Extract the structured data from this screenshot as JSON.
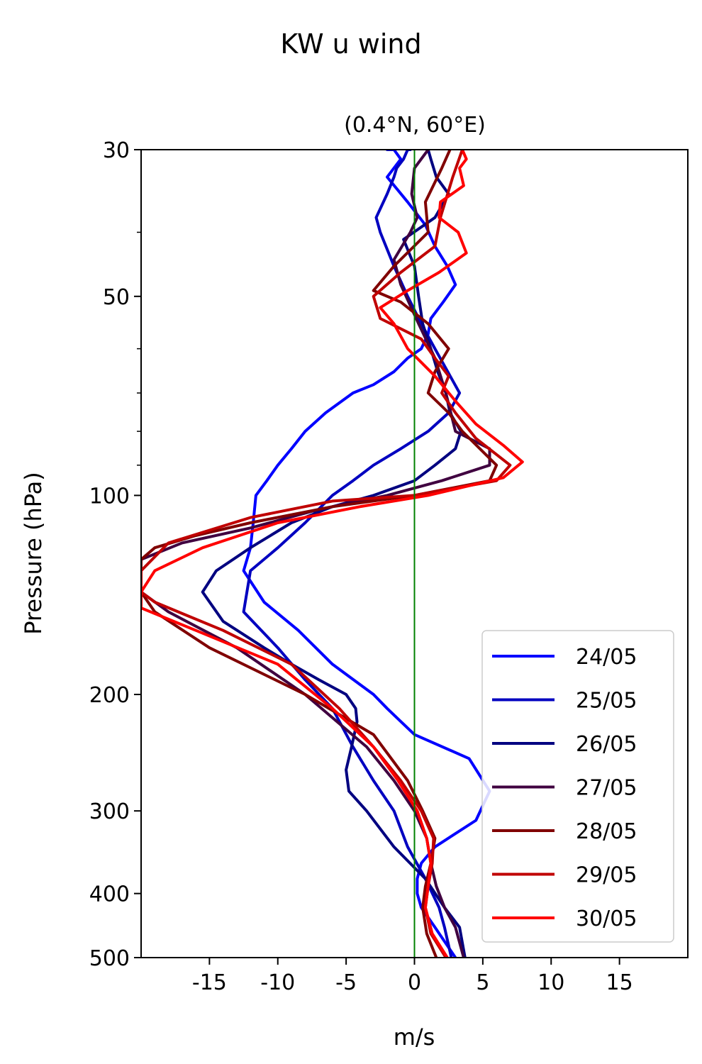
{
  "chart_data": {
    "type": "line",
    "title": "KW u wind",
    "subtitle": "(0.4°N, 60°E)",
    "xlabel": "m/s",
    "ylabel": "Pressure (hPa)",
    "xlim": [
      -20,
      20
    ],
    "ylim": [
      500,
      30
    ],
    "y_scale": "log",
    "x_ticks": [
      -15,
      -10,
      -5,
      0,
      5,
      10,
      15
    ],
    "x_tick_labels": [
      "-15",
      "-10",
      "-5",
      "0",
      "5",
      "10",
      "15"
    ],
    "y_ticks": [
      30,
      50,
      100,
      200,
      300,
      400,
      500
    ],
    "y_tick_labels": [
      "30",
      "50",
      "100",
      "200",
      "300",
      "400",
      "500"
    ],
    "zero_line_color": "#008000",
    "grid": false,
    "legend_position": "lower right",
    "series": [
      {
        "name": "24/05",
        "color": "#0000ff",
        "x": [
          3,
          1.5,
          0.5,
          0.2,
          0.2,
          0.5,
          1.5,
          4.5,
          5.5,
          4,
          0,
          -2,
          -3,
          -6,
          -8.5,
          -11,
          -12.5,
          -12,
          -11.8,
          -11.6,
          -10.8,
          -10,
          -9,
          -8,
          -6.5,
          -4.5,
          -3,
          -1.5,
          -0.5,
          0.5,
          1,
          1.2,
          2.1,
          3.0,
          2.4,
          1.5,
          0.8,
          -0.5,
          -2.0,
          -1.0,
          -1.5,
          -2.0
        ],
        "y": [
          500,
          450,
          420,
          400,
          380,
          360,
          340,
          310,
          280,
          250,
          230,
          210,
          200,
          180,
          160,
          145,
          130,
          120,
          110,
          100,
          95,
          90,
          85,
          80,
          75,
          70,
          68,
          65,
          62,
          60,
          57,
          54,
          51,
          48,
          45,
          42,
          39,
          36,
          33,
          31,
          30,
          30
        ]
      },
      {
        "name": "25/05",
        "color": "#0000c0",
        "x": [
          2.7,
          2.2,
          1.8,
          0.8,
          -0.5,
          -1.5,
          -3,
          -4.5,
          -6,
          -8,
          -10,
          -12.5,
          -12.0,
          -10,
          -8,
          -6,
          -4.5,
          -3,
          -1,
          1,
          2.5,
          3.3,
          1.5,
          0.5,
          -0.5,
          -1.5,
          -2.5,
          -2.8,
          -2.0,
          -1.5,
          -1.3,
          -0.8,
          -0.5,
          -0.3
        ],
        "y": [
          500,
          450,
          420,
          380,
          340,
          300,
          270,
          240,
          210,
          190,
          170,
          150,
          130,
          120,
          110,
          100,
          95,
          90,
          85,
          80,
          75,
          70,
          60,
          55,
          50,
          45,
          40,
          38,
          35,
          33,
          32,
          31,
          30,
          30
        ]
      },
      {
        "name": "26/05",
        "color": "#000080",
        "x": [
          3.7,
          3.3,
          2.2,
          0.8,
          -1.5,
          -3.5,
          -4.8,
          -5,
          -4.6,
          -4.2,
          -4.3,
          -5,
          -7,
          -9,
          -11,
          -14,
          -15.5,
          -14.5,
          -12,
          -9,
          -6,
          -3,
          0,
          1.5,
          3,
          3.4,
          2.6,
          2.3,
          1.7,
          1.2,
          0.6,
          0.3,
          0,
          -0.8,
          1.5,
          2.5,
          1.6,
          1.2,
          1.0
        ],
        "y": [
          500,
          450,
          420,
          380,
          340,
          300,
          280,
          260,
          240,
          220,
          210,
          200,
          190,
          180,
          170,
          155,
          140,
          130,
          120,
          110,
          104,
          100,
          95,
          90,
          85,
          80,
          75,
          70,
          65,
          60,
          55,
          50,
          45,
          41,
          38,
          35,
          33,
          31,
          30
        ]
      },
      {
        "name": "27/05",
        "color": "#400040",
        "x": [
          3.6,
          3.0,
          2.2,
          1.6,
          1.2,
          0.9,
          0,
          -1.5,
          -3.5,
          -8,
          -13,
          -18,
          -20,
          -20,
          -17,
          -12,
          -7,
          -2,
          2,
          5.5,
          5.5,
          3,
          2.3,
          1.5,
          0.3,
          -1,
          -1.5,
          -0.3,
          0.2,
          -0.2,
          0,
          1.0
        ],
        "y": [
          500,
          450,
          420,
          390,
          360,
          330,
          300,
          270,
          240,
          200,
          170,
          150,
          140,
          125,
          118,
          112,
          105,
          100,
          95,
          90,
          85,
          80,
          70,
          62,
          55,
          48,
          44,
          40,
          38,
          35,
          32,
          30
        ]
      },
      {
        "name": "28/05",
        "color": "#800000",
        "x": [
          1.6,
          0.9,
          0.6,
          0.8,
          1.2,
          1.5,
          0.6,
          -0.5,
          -3,
          -8,
          -15,
          -19,
          -20,
          -20,
          -19,
          -16,
          -12,
          -6,
          0,
          5.5,
          6.0,
          3.5,
          2.5,
          1.0,
          1.5,
          2.5,
          1.0,
          -1.0,
          -3,
          -1.5,
          1.0,
          0.8,
          2.0,
          2.6
        ],
        "y": [
          500,
          460,
          420,
          390,
          360,
          330,
          300,
          270,
          230,
          200,
          170,
          150,
          140,
          125,
          120,
          115,
          110,
          104,
          100,
          95,
          90,
          80,
          75,
          70,
          65,
          60,
          55,
          51,
          49,
          45,
          40,
          36,
          32,
          30
        ]
      },
      {
        "name": "29/05",
        "color": "#c00000",
        "x": [
          2.3,
          1.2,
          0.8,
          1,
          1.3,
          1.4,
          0.5,
          -1,
          -3,
          -5.5,
          -9,
          -14,
          -19,
          -20,
          -20,
          -18,
          -12,
          -6,
          0,
          6,
          7.0,
          4.5,
          3.0,
          2.0,
          2.5,
          1.5,
          0.5,
          -2.5,
          -3.0,
          -1.0,
          1.5,
          1.9,
          2.8,
          3.5
        ],
        "y": [
          500,
          460,
          420,
          390,
          360,
          330,
          300,
          270,
          240,
          210,
          180,
          160,
          145,
          140,
          130,
          118,
          108,
          102,
          100,
          95,
          90,
          82,
          75,
          70,
          66,
          62,
          58,
          54,
          50,
          46,
          42,
          38,
          33,
          30
        ]
      },
      {
        "name": "30/05",
        "color": "#ff0000",
        "x": [
          2.4,
          1.3,
          0.8,
          1.0,
          1.2,
          0.9,
          0.2,
          -1.2,
          -3.0,
          -6.0,
          -10.0,
          -16.0,
          -20.0,
          -20.0,
          -19.0,
          -15.5,
          -10.0,
          -4.0,
          1.0,
          6.5,
          7.9,
          6.5,
          4.5,
          3.0,
          1.5,
          -0.5,
          -1.5,
          -2.5,
          -0.5,
          1.8,
          3.8,
          3.2,
          1.8,
          1.9,
          3.6,
          3.3,
          3.8,
          3.5
        ],
        "y": [
          500,
          460,
          420,
          390,
          360,
          330,
          300,
          270,
          240,
          210,
          180,
          160,
          148,
          140,
          130,
          120,
          110,
          104,
          100,
          94,
          89,
          84,
          78,
          72,
          66,
          60,
          55,
          52,
          49,
          46,
          43,
          40,
          38,
          36,
          34,
          32,
          31,
          30
        ]
      }
    ]
  }
}
